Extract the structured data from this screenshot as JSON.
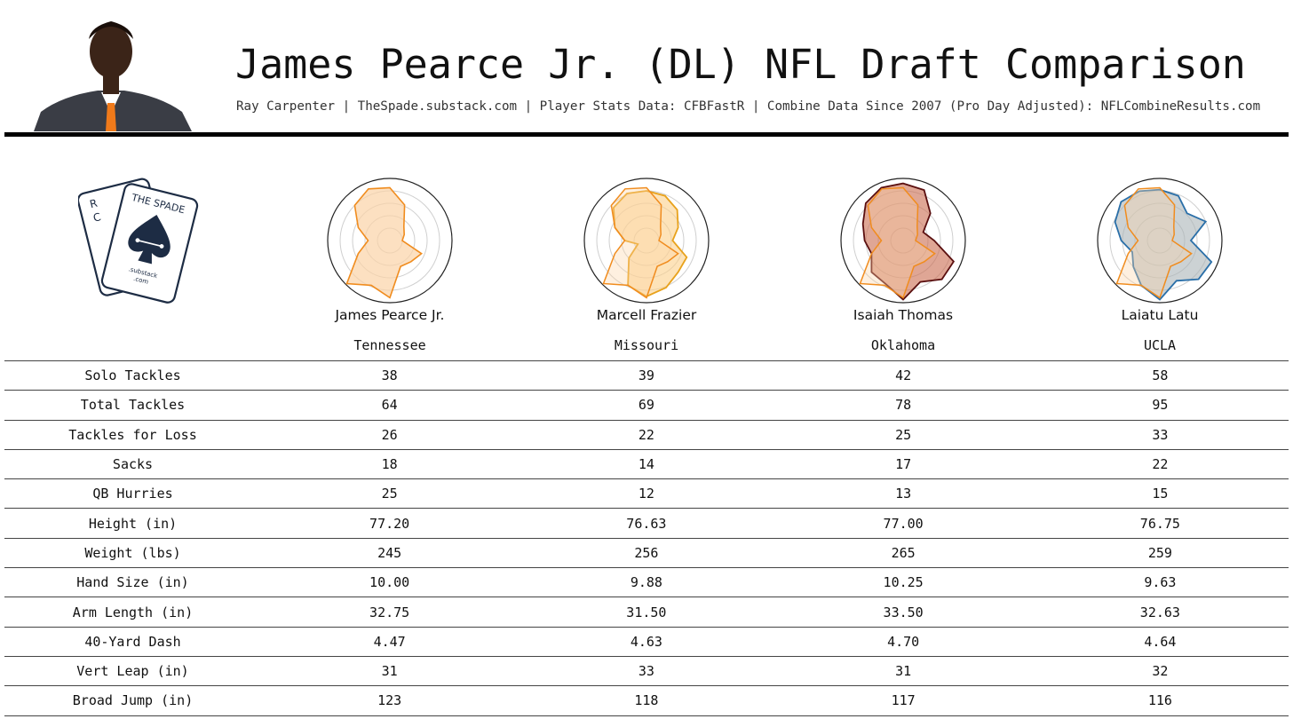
{
  "header": {
    "title": "James Pearce Jr. (DL) NFL Draft Comparison",
    "subtitle": "Ray Carpenter | TheSpade.substack.com | Player Stats Data: CFBFastR | Combine Data Since 2007 (Pro Day Adjusted): NFLCombineResults.com"
  },
  "logo": {
    "card_text": "THE SPADE",
    "site": ".substack",
    "tld": ".com"
  },
  "players": [
    {
      "name": "James Pearce Jr.",
      "school": "Tennessee",
      "stats": [
        "38",
        "64",
        "26",
        "18",
        "25",
        "77.20",
        "245",
        "10.00",
        "32.75",
        "4.47",
        "31",
        "123"
      ]
    },
    {
      "name": "Marcell Frazier",
      "school": "Missouri",
      "stats": [
        "39",
        "69",
        "22",
        "14",
        "12",
        "76.63",
        "256",
        "9.88",
        "31.50",
        "4.63",
        "33",
        "118"
      ]
    },
    {
      "name": "Isaiah Thomas",
      "school": "Oklahoma",
      "stats": [
        "42",
        "78",
        "25",
        "17",
        "13",
        "77.00",
        "265",
        "10.25",
        "33.50",
        "4.70",
        "31",
        "117"
      ]
    },
    {
      "name": "Laiatu Latu",
      "school": "UCLA",
      "stats": [
        "58",
        "95",
        "33",
        "22",
        "15",
        "76.75",
        "259",
        "9.63",
        "32.63",
        "4.64",
        "32",
        "116"
      ]
    }
  ],
  "stat_labels": [
    "Solo Tackles",
    "Total Tackles",
    "Tackles for Loss",
    "Sacks",
    "QB Hurries",
    "Height (in)",
    "Weight (lbs)",
    "Hand Size (in)",
    "Arm Length (in)",
    "40-Yard Dash",
    "Vert Leap (in)",
    "Broad Jump (in)"
  ],
  "radar": {
    "base_color": "#f08c1e",
    "base_fill": "#fbd3a6",
    "comparison_colors": [
      "#e8a21c",
      "#5a0f0f",
      "#2a6fa8"
    ],
    "comparison_fills": [
      "#fcd08a",
      "#c96a4e",
      "#aab4b8"
    ],
    "base_profile": [
      0.85,
      0.62,
      0.32,
      0.25,
      0.2,
      0.55,
      0.48,
      0.45,
      0.92,
      0.78,
      0.98,
      0.55,
      0.35,
      0.55,
      0.8,
      0.9
    ],
    "comparison_profiles": [
      [
        0.8,
        0.78,
        0.7,
        0.55,
        0.42,
        0.7,
        0.72,
        0.82,
        0.9,
        0.78,
        0.4,
        0.15,
        0.35,
        0.55,
        0.75,
        0.82
      ],
      [
        0.92,
        0.88,
        0.62,
        0.35,
        0.5,
        0.88,
        0.88,
        0.72,
        0.95,
        0.75,
        0.72,
        0.55,
        0.62,
        0.7,
        0.85,
        0.92
      ],
      [
        0.82,
        0.78,
        0.62,
        0.8,
        0.5,
        0.9,
        0.88,
        0.7,
        0.95,
        0.78,
        0.6,
        0.48,
        0.62,
        0.78,
        0.88,
        0.86
      ]
    ]
  }
}
